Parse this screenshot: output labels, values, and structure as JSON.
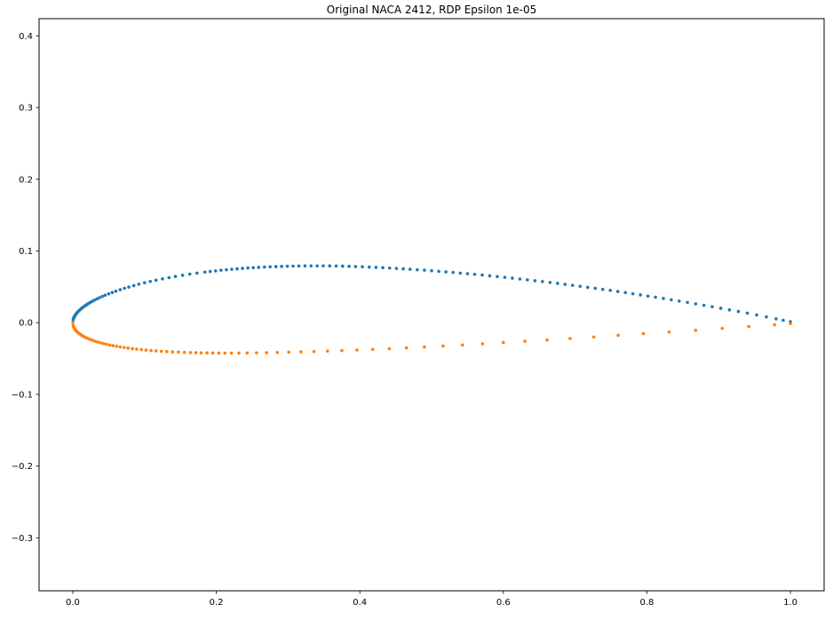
{
  "figure": {
    "background": "#ffffff"
  },
  "chart_data": {
    "type": "scatter",
    "title": "Original NACA 2412, RDP Epsilon 1e-05",
    "xlabel": "",
    "ylabel": "",
    "xlim": [
      -0.047,
      1.047
    ],
    "ylim": [
      -0.374,
      0.424
    ],
    "grid": false,
    "legend": "none",
    "marker_radius": 1.8,
    "xticks": {
      "values": [
        0.0,
        0.2,
        0.4,
        0.6,
        0.8,
        1.0
      ],
      "labels": [
        "0.0",
        "0.2",
        "0.4",
        "0.6",
        "0.8",
        "1.0"
      ]
    },
    "yticks": {
      "values": [
        0.4,
        0.3,
        0.2,
        0.1,
        0.0,
        -0.1,
        -0.2,
        -0.3
      ],
      "labels": [
        "0.4",
        "0.3",
        "0.2",
        "0.1",
        "0.0",
        "−0.1",
        "−0.2",
        "−0.3"
      ]
    },
    "series": [
      {
        "name": "upper_surface",
        "color": "#1f77b4",
        "x": [
          0.0005,
          0.001,
          0.0015,
          0.002,
          0.0025,
          0.003,
          0.004,
          0.005,
          0.006,
          0.007,
          0.0085,
          0.01,
          0.0115,
          0.013,
          0.015,
          0.017,
          0.019,
          0.0215,
          0.024,
          0.027,
          0.03,
          0.0335,
          0.037,
          0.041,
          0.045,
          0.05,
          0.055,
          0.06,
          0.066,
          0.072,
          0.078,
          0.085,
          0.092,
          0.1,
          0.108,
          0.116,
          0.125,
          0.134,
          0.143,
          0.153,
          0.163,
          0.173,
          0.184,
          0.1915,
          0.199,
          0.2065,
          0.214,
          0.2215,
          0.229,
          0.2365,
          0.244,
          0.2515,
          0.259,
          0.267,
          0.275,
          0.283,
          0.291,
          0.299,
          0.307,
          0.315,
          0.3235,
          0.332,
          0.3405,
          0.349,
          0.358,
          0.367,
          0.376,
          0.385,
          0.394,
          0.4035,
          0.413,
          0.4225,
          0.432,
          0.4415,
          0.451,
          0.4605,
          0.47,
          0.48,
          0.49,
          0.5,
          0.51,
          0.52,
          0.53,
          0.54,
          0.55,
          0.56,
          0.5705,
          0.581,
          0.5915,
          0.602,
          0.6125,
          0.623,
          0.6335,
          0.644,
          0.6545,
          0.665,
          0.6755,
          0.686,
          0.6965,
          0.707,
          0.7175,
          0.728,
          0.7385,
          0.749,
          0.7595,
          0.77,
          0.7805,
          0.791,
          0.8015,
          0.812,
          0.823,
          0.834,
          0.845,
          0.8565,
          0.868,
          0.8795,
          0.891,
          0.903,
          0.915,
          0.9275,
          0.94,
          0.953,
          0.9665,
          0.98,
          0.99,
          1.0
        ],
        "y": [
          0.004,
          0.0057,
          0.0069,
          0.008,
          0.009,
          0.0098,
          0.0114,
          0.0127,
          0.0139,
          0.0151,
          0.0166,
          0.018,
          0.0193,
          0.0206,
          0.0221,
          0.0236,
          0.0249,
          0.0265,
          0.028,
          0.0297,
          0.0313,
          0.033,
          0.0347,
          0.0365,
          0.0382,
          0.0402,
          0.0421,
          0.0439,
          0.046,
          0.0479,
          0.0497,
          0.0517,
          0.0536,
          0.0556,
          0.0575,
          0.0592,
          0.0611,
          0.0628,
          0.0644,
          0.0661,
          0.0677,
          0.0691,
          0.0705,
          0.0714,
          0.0722,
          0.0731,
          0.0738,
          0.0745,
          0.0751,
          0.0757,
          0.0762,
          0.0767,
          0.0771,
          0.0776,
          0.0779,
          0.0782,
          0.0785,
          0.0787,
          0.0789,
          0.079,
          0.0791,
          0.0792,
          0.0792,
          0.0792,
          0.0791,
          0.079,
          0.0788,
          0.0785,
          0.0782,
          0.0779,
          0.0775,
          0.0771,
          0.0766,
          0.0761,
          0.0756,
          0.0751,
          0.0745,
          0.0738,
          0.0732,
          0.0724,
          0.0716,
          0.0708,
          0.07,
          0.0691,
          0.0683,
          0.0674,
          0.0664,
          0.0653,
          0.0642,
          0.0632,
          0.0621,
          0.0609,
          0.0597,
          0.0585,
          0.0573,
          0.0561,
          0.0548,
          0.0534,
          0.0521,
          0.0507,
          0.0493,
          0.0479,
          0.0464,
          0.045,
          0.0435,
          0.0419,
          0.0403,
          0.0387,
          0.0371,
          0.0355,
          0.0337,
          0.0319,
          0.0301,
          0.0282,
          0.0262,
          0.0242,
          0.0222,
          0.0201,
          0.0178,
          0.0156,
          0.0133,
          0.0107,
          0.008,
          0.0053,
          0.0033,
          0.0013
        ]
      },
      {
        "name": "lower_surface",
        "color": "#ff7f0e",
        "x": [
          0.0,
          0.0006,
          0.0014,
          0.0024,
          0.0036,
          0.005,
          0.0065,
          0.008,
          0.01,
          0.012,
          0.014,
          0.0165,
          0.019,
          0.022,
          0.025,
          0.028,
          0.0315,
          0.035,
          0.039,
          0.043,
          0.047,
          0.0515,
          0.056,
          0.061,
          0.066,
          0.0715,
          0.077,
          0.083,
          0.089,
          0.0955,
          0.102,
          0.109,
          0.116,
          0.1235,
          0.131,
          0.139,
          0.147,
          0.1555,
          0.164,
          0.1715,
          0.179,
          0.187,
          0.195,
          0.2035,
          0.212,
          0.221,
          0.2315,
          0.243,
          0.256,
          0.27,
          0.285,
          0.301,
          0.318,
          0.336,
          0.355,
          0.375,
          0.396,
          0.418,
          0.441,
          0.465,
          0.49,
          0.516,
          0.543,
          0.571,
          0.6,
          0.63,
          0.661,
          0.693,
          0.726,
          0.76,
          0.795,
          0.831,
          0.868,
          0.905,
          0.942,
          0.978,
          1.0
        ],
        "y": [
          0.0,
          -0.0043,
          -0.0064,
          -0.0083,
          -0.0101,
          -0.0117,
          -0.0132,
          -0.0145,
          -0.0161,
          -0.0174,
          -0.0186,
          -0.02,
          -0.0212,
          -0.0225,
          -0.0237,
          -0.0248,
          -0.026,
          -0.0271,
          -0.0282,
          -0.0292,
          -0.0302,
          -0.0312,
          -0.0321,
          -0.033,
          -0.0339,
          -0.0347,
          -0.0355,
          -0.0363,
          -0.037,
          -0.0376,
          -0.0383,
          -0.0389,
          -0.0394,
          -0.0399,
          -0.0403,
          -0.0408,
          -0.0411,
          -0.0415,
          -0.0417,
          -0.0419,
          -0.0421,
          -0.0422,
          -0.0423,
          -0.0424,
          -0.0424,
          -0.0424,
          -0.0424,
          -0.0423,
          -0.0421,
          -0.0419,
          -0.0416,
          -0.0412,
          -0.0408,
          -0.0402,
          -0.0396,
          -0.0389,
          -0.0382,
          -0.0373,
          -0.0364,
          -0.0352,
          -0.034,
          -0.0326,
          -0.0312,
          -0.0296,
          -0.0278,
          -0.026,
          -0.0241,
          -0.0221,
          -0.0199,
          -0.0177,
          -0.0154,
          -0.013,
          -0.0106,
          -0.008,
          -0.0054,
          -0.0029,
          -0.0013
        ]
      }
    ]
  }
}
